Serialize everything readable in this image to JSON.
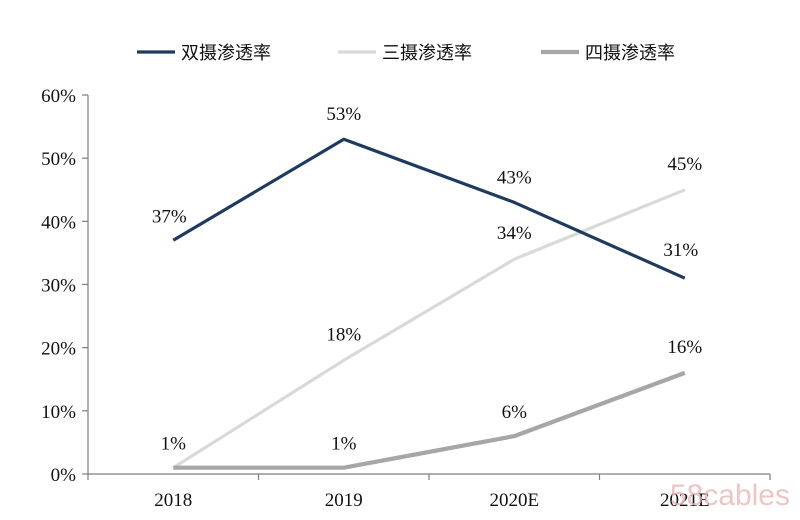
{
  "chart_data": {
    "type": "line",
    "categories": [
      "2018",
      "2019",
      "2020E",
      "2021E"
    ],
    "series": [
      {
        "name": "双摄渗透率",
        "values": [
          37,
          53,
          43,
          31
        ],
        "labels": [
          "37%",
          "53%",
          "43%",
          "31%"
        ],
        "color": "#1f3a5f"
      },
      {
        "name": "三摄渗透率",
        "values": [
          1,
          18,
          34,
          45
        ],
        "labels": [
          "",
          "18%",
          "34%",
          "45%"
        ],
        "color": "#d9d9d9"
      },
      {
        "name": "四摄渗透率",
        "values": [
          1,
          1,
          6,
          16
        ],
        "labels": [
          "1%",
          "1%",
          "6%",
          "16%"
        ],
        "color": "#a6a6a6"
      }
    ],
    "ylim": [
      0,
      60
    ],
    "yticks": [
      "0%",
      "10%",
      "20%",
      "30%",
      "40%",
      "50%",
      "60%"
    ],
    "legend_position": "top",
    "grid": false
  },
  "watermark": {
    "text": "58cables"
  }
}
